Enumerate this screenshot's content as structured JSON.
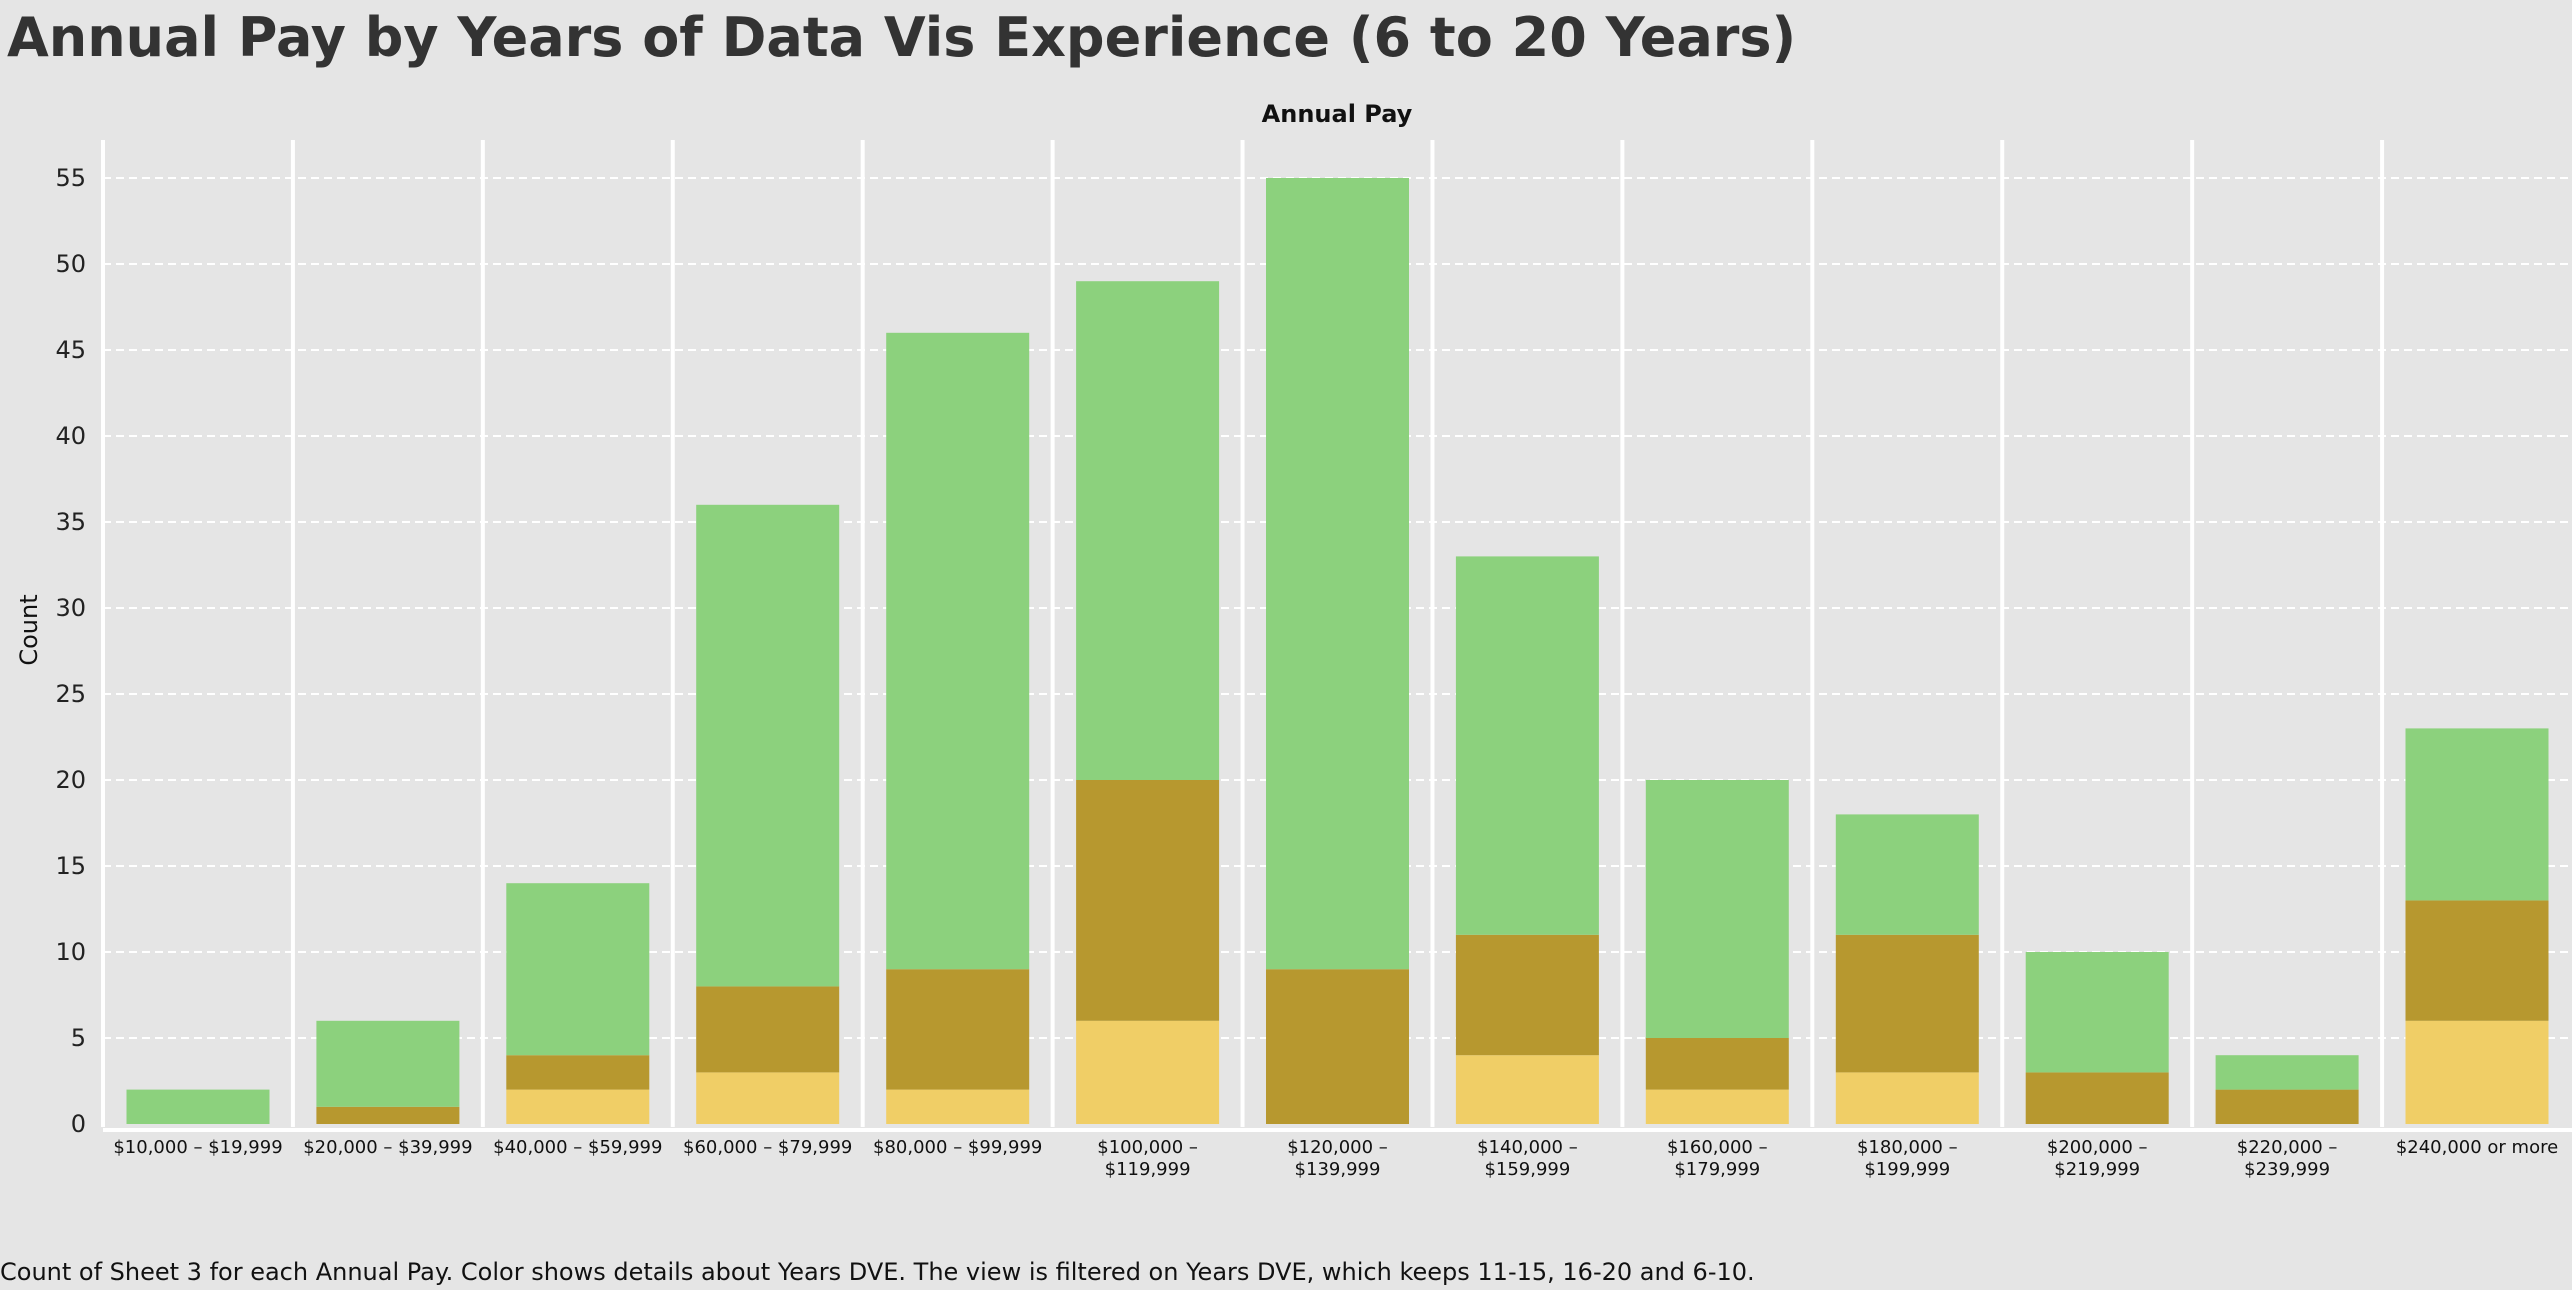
{
  "chart_data": {
    "type": "bar",
    "stacked": true,
    "title": "Annual Pay by Years of Data Vis Experience (6 to 20 Years)",
    "column_header": "Annual Pay",
    "ylabel": "Count",
    "ylim": [
      0,
      57.5
    ],
    "yticks": [
      0,
      5,
      10,
      15,
      20,
      25,
      30,
      35,
      40,
      45,
      50,
      55
    ],
    "grid": true,
    "legend": "none",
    "categories": [
      [
        "$10,000 – $19,999"
      ],
      [
        "$20,000 – $39,999"
      ],
      [
        "$40,000 – $59,999"
      ],
      [
        "$60,000 – $79,999"
      ],
      [
        "$80,000 – $99,999"
      ],
      [
        "$100,000 –",
        "$119,999"
      ],
      [
        "$120,000 –",
        "$139,999"
      ],
      [
        "$140,000 –",
        "$159,999"
      ],
      [
        "$160,000 –",
        "$179,999"
      ],
      [
        "$180,000 –",
        "$199,999"
      ],
      [
        "$200,000 –",
        "$219,999"
      ],
      [
        "$220,000 –",
        "$239,999"
      ],
      [
        "$240,000 or more"
      ]
    ],
    "series": [
      {
        "color": "#f0ce66",
        "values": [
          0,
          0,
          2,
          3,
          2,
          6,
          0,
          4,
          2,
          3,
          0,
          0,
          6
        ]
      },
      {
        "color": "#b7982f",
        "values": [
          0,
          1,
          2,
          5,
          7,
          14,
          9,
          7,
          3,
          8,
          3,
          2,
          7
        ]
      },
      {
        "color": "#8cd17d",
        "values": [
          2,
          5,
          10,
          28,
          37,
          29,
          46,
          22,
          15,
          7,
          7,
          2,
          10
        ]
      }
    ],
    "caption": "Count of Sheet 3 for each Annual Pay.  Color shows details about Years DVE. The view is filtered on Years DVE, which keeps 11-15, 16-20 and 6-10."
  }
}
